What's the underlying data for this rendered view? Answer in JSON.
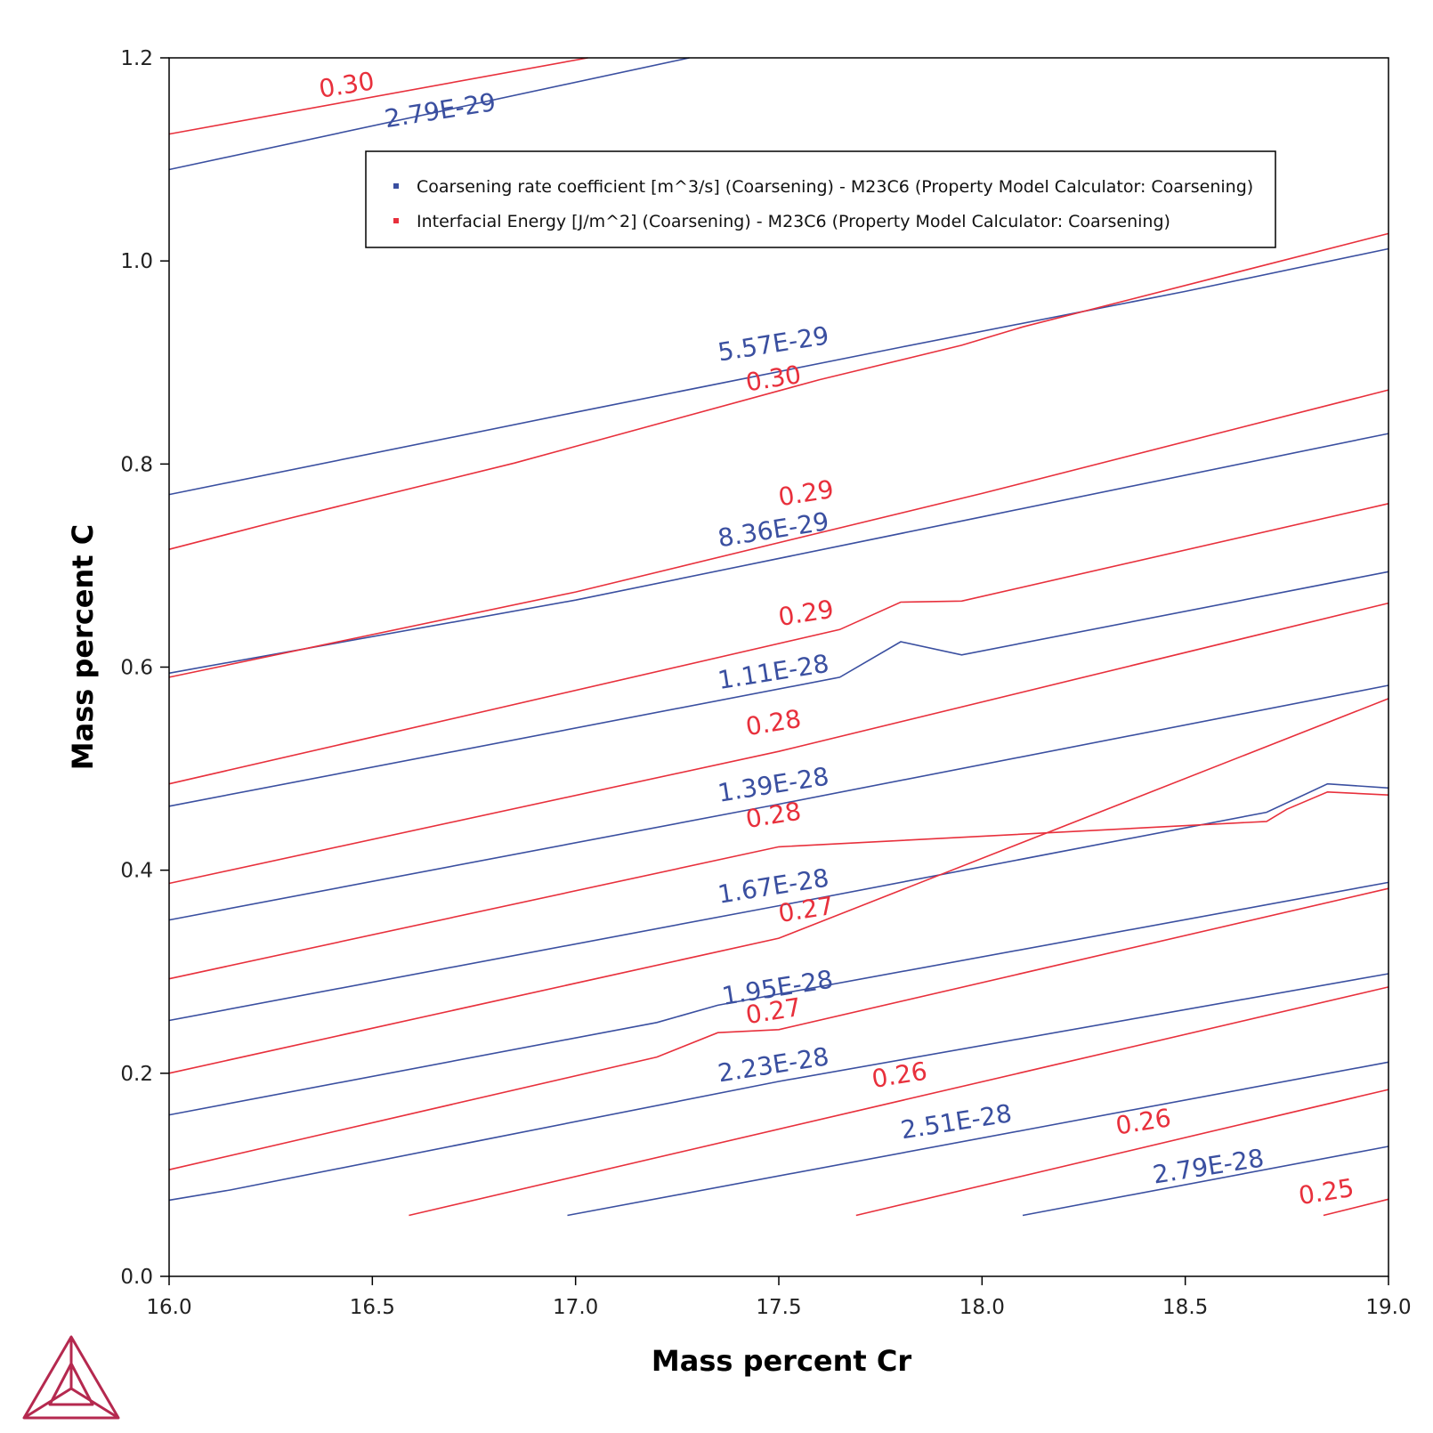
{
  "chart_data": {
    "type": "line",
    "title": "",
    "xlabel": "Mass percent Cr",
    "ylabel": "Mass percent C",
    "xlim": [
      16.0,
      19.0
    ],
    "ylim": [
      0.0,
      1.2
    ],
    "xticks": [
      "16.0",
      "16.5",
      "17.0",
      "17.5",
      "18.0",
      "18.5",
      "19.0"
    ],
    "yticks": [
      "0.0",
      "0.2",
      "0.4",
      "0.6",
      "0.8",
      "1.0",
      "1.2"
    ],
    "grid": false,
    "legend_position": "top",
    "colors": {
      "coarsening": "#3a4fa0",
      "energy": "#e8303c",
      "logo": "#b5294f"
    },
    "legend": [
      {
        "label": "Coarsening rate coefficient [m^3/s] (Coarsening) - M23C6 (Property Model Calculator: Coarsening)",
        "color": "#3a4fa0"
      },
      {
        "label": "Interfacial Energy [J/m^2] (Coarsening) - M23C6 (Property Model Calculator: Coarsening)",
        "color": "#e8303c"
      }
    ],
    "series": [
      {
        "group": "coarsening",
        "contour_level": "2.79E-29",
        "points": [
          [
            16.0,
            1.09
          ],
          [
            17.28,
            1.2
          ]
        ]
      },
      {
        "group": "coarsening",
        "contour_level": "5.57E-29",
        "points": [
          [
            16.0,
            0.77
          ],
          [
            17.0,
            0.851
          ],
          [
            17.8,
            0.915
          ],
          [
            18.5,
            0.97
          ],
          [
            19.0,
            1.012
          ]
        ]
      },
      {
        "group": "coarsening",
        "contour_level": "8.36E-29",
        "points": [
          [
            16.0,
            0.594
          ],
          [
            17.0,
            0.666
          ],
          [
            18.0,
            0.748
          ],
          [
            19.0,
            0.83
          ]
        ]
      },
      {
        "group": "coarsening",
        "contour_level": "1.11E-28",
        "points": [
          [
            16.0,
            0.463
          ],
          [
            17.65,
            0.59
          ],
          [
            17.8,
            0.625
          ],
          [
            17.95,
            0.612
          ],
          [
            19.0,
            0.694
          ]
        ]
      },
      {
        "group": "coarsening",
        "contour_level": "1.39E-28",
        "points": [
          [
            16.0,
            0.351
          ],
          [
            17.5,
            0.465
          ],
          [
            19.0,
            0.582
          ]
        ]
      },
      {
        "group": "coarsening",
        "contour_level": "1.67E-28",
        "points": [
          [
            16.0,
            0.252
          ],
          [
            17.5,
            0.365
          ],
          [
            18.7,
            0.457
          ],
          [
            18.85,
            0.485
          ],
          [
            19.0,
            0.481
          ]
        ]
      },
      {
        "group": "coarsening",
        "contour_level": "1.95E-28",
        "points": [
          [
            16.0,
            0.159
          ],
          [
            17.2,
            0.25
          ],
          [
            17.35,
            0.267
          ],
          [
            19.0,
            0.388
          ]
        ]
      },
      {
        "group": "coarsening",
        "contour_level": "2.23E-28",
        "points": [
          [
            16.0,
            0.075
          ],
          [
            16.15,
            0.085
          ],
          [
            17.5,
            0.192
          ],
          [
            19.0,
            0.298
          ]
        ]
      },
      {
        "group": "coarsening",
        "contour_level": "2.51E-28",
        "points": [
          [
            16.98,
            0.06
          ],
          [
            19.0,
            0.211
          ]
        ]
      },
      {
        "group": "coarsening",
        "contour_level": "2.79E-28",
        "points": [
          [
            18.1,
            0.06
          ],
          [
            19.0,
            0.128
          ]
        ]
      },
      {
        "group": "energy",
        "contour_level": "0.30",
        "points": [
          [
            16.0,
            1.125
          ],
          [
            17.03,
            1.2
          ]
        ]
      },
      {
        "group": "energy",
        "contour_level": "0.30",
        "points": [
          [
            16.0,
            0.716
          ],
          [
            16.28,
            0.745
          ],
          [
            16.85,
            0.801
          ],
          [
            17.6,
            0.883
          ],
          [
            17.95,
            0.917
          ],
          [
            18.1,
            0.935
          ],
          [
            19.0,
            1.027
          ]
        ]
      },
      {
        "group": "energy",
        "contour_level": "0.29",
        "points": [
          [
            16.0,
            0.59
          ],
          [
            17.0,
            0.674
          ],
          [
            18.0,
            0.771
          ],
          [
            19.0,
            0.873
          ]
        ]
      },
      {
        "group": "energy",
        "contour_level": "0.29",
        "points": [
          [
            16.0,
            0.485
          ],
          [
            17.65,
            0.637
          ],
          [
            17.8,
            0.664
          ],
          [
            17.95,
            0.665
          ],
          [
            19.0,
            0.761
          ]
        ]
      },
      {
        "group": "energy",
        "contour_level": "0.28",
        "points": [
          [
            16.0,
            0.387
          ],
          [
            17.5,
            0.517
          ],
          [
            19.0,
            0.663
          ]
        ]
      },
      {
        "group": "energy",
        "contour_level": "0.28",
        "points": [
          [
            16.0,
            0.293
          ],
          [
            17.5,
            0.423
          ],
          [
            18.7,
            0.448
          ],
          [
            18.75,
            0.46
          ],
          [
            18.85,
            0.477
          ],
          [
            19.0,
            0.474
          ]
        ]
      },
      {
        "group": "energy",
        "contour_level": "0.27",
        "points": [
          [
            16.0,
            0.2
          ],
          [
            17.5,
            0.333
          ],
          [
            19.0,
            0.569
          ]
        ]
      },
      {
        "group": "energy",
        "contour_level": "0.27",
        "points": [
          [
            16.0,
            0.105
          ],
          [
            17.2,
            0.216
          ],
          [
            17.35,
            0.24
          ],
          [
            17.5,
            0.243
          ],
          [
            19.0,
            0.382
          ]
        ]
      },
      {
        "group": "energy",
        "contour_level": "0.26",
        "points": [
          [
            16.59,
            0.06
          ],
          [
            19.0,
            0.285
          ]
        ]
      },
      {
        "group": "energy",
        "contour_level": "0.26",
        "points": [
          [
            17.69,
            0.06
          ],
          [
            19.0,
            0.184
          ]
        ]
      },
      {
        "group": "energy",
        "contour_level": "0.25",
        "points": [
          [
            18.84,
            0.06
          ],
          [
            19.0,
            0.076
          ]
        ]
      }
    ],
    "contour_labels": [
      {
        "group": "energy",
        "text": "0.30",
        "x": 16.44,
        "y": 1.165
      },
      {
        "group": "coarsening",
        "text": "2.79E-29",
        "x": 16.67,
        "y": 1.14
      },
      {
        "group": "coarsening",
        "text": "5.57E-29",
        "x": 17.49,
        "y": 0.91
      },
      {
        "group": "energy",
        "text": "0.30",
        "x": 17.49,
        "y": 0.876
      },
      {
        "group": "energy",
        "text": "0.29",
        "x": 17.57,
        "y": 0.763
      },
      {
        "group": "coarsening",
        "text": "8.36E-29",
        "x": 17.49,
        "y": 0.727
      },
      {
        "group": "energy",
        "text": "0.29",
        "x": 17.57,
        "y": 0.645
      },
      {
        "group": "coarsening",
        "text": "1.11E-28",
        "x": 17.49,
        "y": 0.587
      },
      {
        "group": "energy",
        "text": "0.28",
        "x": 17.49,
        "y": 0.537
      },
      {
        "group": "coarsening",
        "text": "1.39E-28",
        "x": 17.49,
        "y": 0.476
      },
      {
        "group": "energy",
        "text": "0.28",
        "x": 17.49,
        "y": 0.446
      },
      {
        "group": "coarsening",
        "text": "1.67E-28",
        "x": 17.49,
        "y": 0.376
      },
      {
        "group": "energy",
        "text": "0.27",
        "x": 17.57,
        "y": 0.353
      },
      {
        "group": "coarsening",
        "text": "1.95E-28",
        "x": 17.5,
        "y": 0.276
      },
      {
        "group": "energy",
        "text": "0.27",
        "x": 17.49,
        "y": 0.253
      },
      {
        "group": "coarsening",
        "text": "2.23E-28",
        "x": 17.49,
        "y": 0.2
      },
      {
        "group": "energy",
        "text": "0.26",
        "x": 17.8,
        "y": 0.19
      },
      {
        "group": "coarsening",
        "text": "2.51E-28",
        "x": 17.94,
        "y": 0.144
      },
      {
        "group": "energy",
        "text": "0.26",
        "x": 18.4,
        "y": 0.144
      },
      {
        "group": "coarsening",
        "text": "2.79E-28",
        "x": 18.56,
        "y": 0.1
      },
      {
        "group": "energy",
        "text": "0.25",
        "x": 18.85,
        "y": 0.075
      }
    ]
  }
}
